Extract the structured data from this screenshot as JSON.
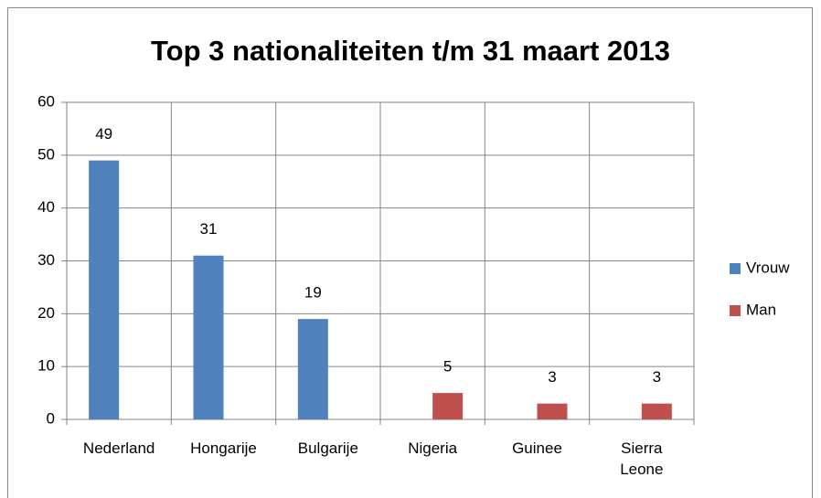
{
  "chart_data": {
    "type": "bar",
    "title": "Top 3 nationaliteiten t/m 31 maart 2013",
    "categories": [
      "Nederland",
      "Hongarije",
      "Bulgarije",
      "Nigeria",
      "Guinee",
      "Sierra Leone"
    ],
    "series": [
      {
        "name": "Vrouw",
        "color": "#4f81bd",
        "values": [
          49,
          31,
          19,
          null,
          null,
          null
        ]
      },
      {
        "name": "Man",
        "color": "#c0504d",
        "values": [
          null,
          null,
          null,
          5,
          3,
          3
        ]
      }
    ],
    "ylim": [
      0,
      60
    ],
    "yticks": [
      0,
      10,
      20,
      30,
      40,
      50,
      60
    ],
    "grid": true,
    "legend": "right"
  }
}
